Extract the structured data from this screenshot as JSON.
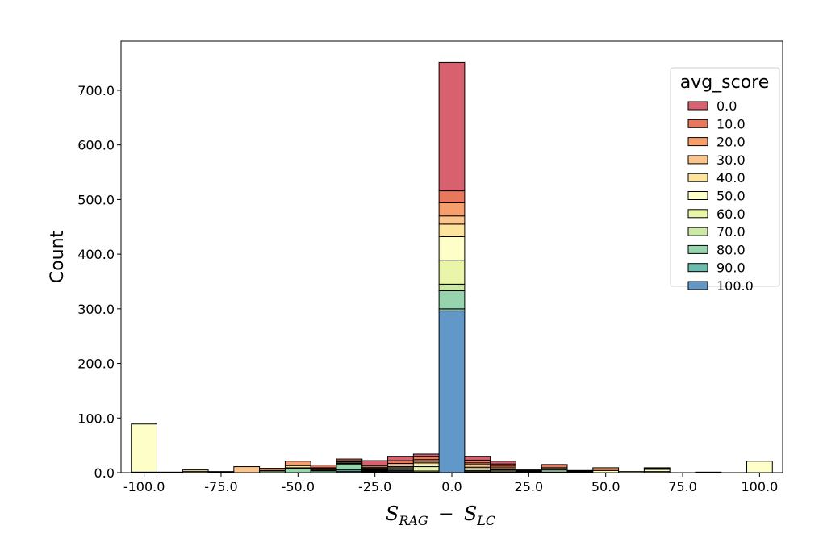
{
  "chart_data": {
    "type": "bar",
    "stacked": true,
    "xlabel_main": "S",
    "xlabel_sub1": "RAG",
    "xlabel_minus": "−",
    "xlabel_sub2": "LC",
    "ylabel": "Count",
    "xlim": [
      -107.5,
      107.5
    ],
    "ylim": [
      0,
      790
    ],
    "xticks": [
      "-100.0",
      "-75.0",
      "-50.0",
      "-25.0",
      "0.0",
      "25.0",
      "50.0",
      "75.0",
      "100.0"
    ],
    "yticks": [
      "0.0",
      "100.0",
      "200.0",
      "300.0",
      "400.0",
      "500.0",
      "600.0",
      "700.0"
    ],
    "grid": false,
    "legend": {
      "title": "avg_score",
      "placement": "top-right",
      "labels": [
        "0.0",
        "10.0",
        "20.0",
        "30.0",
        "40.0",
        "50.0",
        "60.0",
        "70.0",
        "80.0",
        "90.0",
        "100.0"
      ]
    },
    "colors": [
      "#d7616e",
      "#e8775d",
      "#f69f6c",
      "#fbc48a",
      "#fde49e",
      "#fefec8",
      "#eaf5a9",
      "#cbe9a5",
      "#97d3ac",
      "#6bbcad",
      "#6198c8"
    ],
    "bin_width": 8.33,
    "bins": [
      {
        "x": -100.0,
        "v": [
          0,
          0,
          0,
          0,
          0,
          88,
          0,
          0,
          0,
          1,
          0
        ]
      },
      {
        "x": -91.67,
        "v": [
          0,
          0,
          0,
          0,
          0,
          1,
          0,
          0,
          0,
          0,
          0
        ]
      },
      {
        "x": -83.33,
        "v": [
          0,
          0,
          0,
          0,
          3,
          2,
          0,
          0,
          0,
          0,
          0
        ]
      },
      {
        "x": -75.0,
        "v": [
          0,
          0,
          0,
          0,
          1,
          1,
          0,
          0,
          0,
          0,
          0
        ]
      },
      {
        "x": -66.67,
        "v": [
          0,
          0,
          0,
          11,
          0,
          0,
          0,
          0,
          0,
          0,
          0
        ]
      },
      {
        "x": -58.33,
        "v": [
          0,
          0,
          4,
          0,
          0,
          0,
          1,
          0,
          3,
          0,
          0
        ]
      },
      {
        "x": -50.0,
        "v": [
          0,
          0,
          8,
          0,
          4,
          0,
          0,
          1,
          8,
          0,
          0
        ]
      },
      {
        "x": -41.67,
        "v": [
          0,
          5,
          1,
          3,
          1,
          0,
          1,
          0,
          3,
          0,
          0
        ]
      },
      {
        "x": -33.33,
        "v": [
          0,
          3,
          2,
          1,
          0,
          2,
          0,
          1,
          11,
          3,
          2
        ]
      },
      {
        "x": -25.0,
        "v": [
          9,
          0,
          3,
          2,
          2,
          1,
          1,
          1,
          1,
          1,
          1
        ]
      },
      {
        "x": -16.67,
        "v": [
          8,
          5,
          3,
          3,
          2,
          2,
          1,
          2,
          2,
          1,
          1
        ]
      },
      {
        "x": -8.33,
        "v": [
          4,
          6,
          3,
          3,
          4,
          3,
          8,
          2,
          1,
          0,
          0
        ]
      },
      {
        "x": 0.0,
        "v": [
          235,
          22,
          24,
          15,
          23,
          44,
          43,
          12,
          33,
          4,
          296
        ]
      },
      {
        "x": 8.33,
        "v": [
          7,
          5,
          3,
          5,
          3,
          3,
          2,
          1,
          1,
          0,
          0
        ]
      },
      {
        "x": 16.67,
        "v": [
          5,
          4,
          3,
          3,
          1,
          2,
          2,
          1,
          0,
          0,
          0
        ]
      },
      {
        "x": 25.0,
        "v": [
          1,
          1,
          1,
          1,
          1,
          0,
          0,
          0,
          0,
          0,
          0
        ]
      },
      {
        "x": 33.33,
        "v": [
          0,
          6,
          0,
          2,
          0,
          0,
          2,
          0,
          4,
          1,
          0
        ]
      },
      {
        "x": 41.67,
        "v": [
          0,
          0,
          1,
          1,
          1,
          1,
          0,
          0,
          0,
          0,
          0
        ]
      },
      {
        "x": 50.0,
        "v": [
          0,
          0,
          5,
          0,
          0,
          4,
          0,
          0,
          0,
          0,
          0
        ]
      },
      {
        "x": 58.33,
        "v": [
          0,
          0,
          0,
          0,
          0,
          2,
          0,
          0,
          0,
          0,
          0
        ]
      },
      {
        "x": 66.67,
        "v": [
          0,
          0,
          0,
          1,
          2,
          4,
          2,
          0,
          0,
          0,
          0
        ]
      },
      {
        "x": 75.0,
        "v": [
          0,
          0,
          0,
          0,
          0,
          0,
          0,
          0,
          0,
          0,
          0
        ]
      },
      {
        "x": 83.33,
        "v": [
          0,
          0,
          0,
          0,
          0,
          1,
          0,
          0,
          0,
          0,
          0
        ]
      },
      {
        "x": 91.67,
        "v": [
          0,
          0,
          0,
          0,
          0,
          0,
          0,
          0,
          0,
          0,
          0
        ]
      },
      {
        "x": 100.0,
        "v": [
          0,
          0,
          0,
          0,
          0,
          21,
          0,
          0,
          0,
          0,
          0
        ]
      }
    ]
  }
}
